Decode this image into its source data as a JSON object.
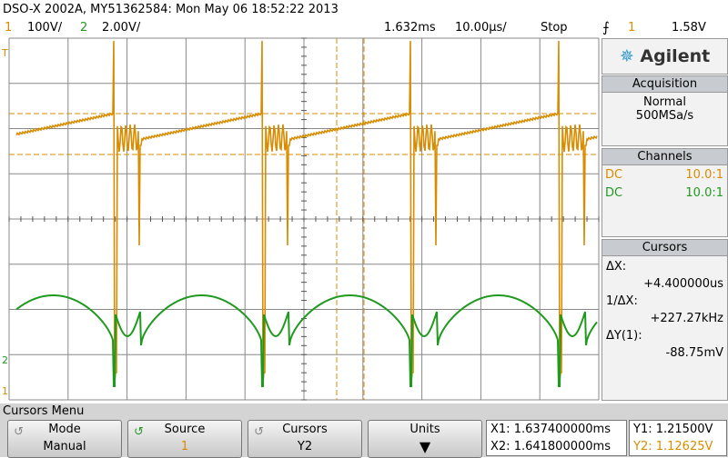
{
  "status": {
    "title": "DSO-X 2002A, MY51362584: Mon May 06 18:52:22 2013",
    "ch1_label": "1",
    "ch1_scale": "100V/",
    "ch2_label": "2",
    "ch2_scale": "2.00V/",
    "delay": "1.632ms",
    "timebase": "10.00µs/",
    "run_state": "Stop",
    "trigger_source": "1",
    "trigger_level": "1.58V"
  },
  "markers": {
    "trigger": "T",
    "ch2": "2",
    "ch1": "1"
  },
  "panel": {
    "brand": "Agilent",
    "acquisition": {
      "title": "Acquisition",
      "mode": "Normal",
      "rate": "500MSa/s"
    },
    "channels": {
      "title": "Channels",
      "rows": [
        [
          "DC",
          "10.0:1"
        ],
        [
          "DC",
          "10.0:1"
        ]
      ]
    },
    "cursors": {
      "title": "Cursors",
      "dx_label": "ΔX:",
      "dx": "+4.400000us",
      "inv_label": "1/ΔX:",
      "inv": "+227.27kHz",
      "dy_label": "ΔY(1):",
      "dy": "-88.75mV"
    }
  },
  "menu": {
    "title": "Cursors Menu",
    "softkeys": [
      {
        "label": "Mode",
        "value": "Manual"
      },
      {
        "label": "Source",
        "value": "1"
      },
      {
        "label": "Cursors",
        "value": "Y2"
      },
      {
        "label": "Units"
      }
    ]
  },
  "readout": {
    "x1": "X1: 1.637400000ms",
    "x2": "X2: 1.641800000ms",
    "y1": "Y1: 1.21500V",
    "y2": "Y2: 1.12625V"
  }
}
